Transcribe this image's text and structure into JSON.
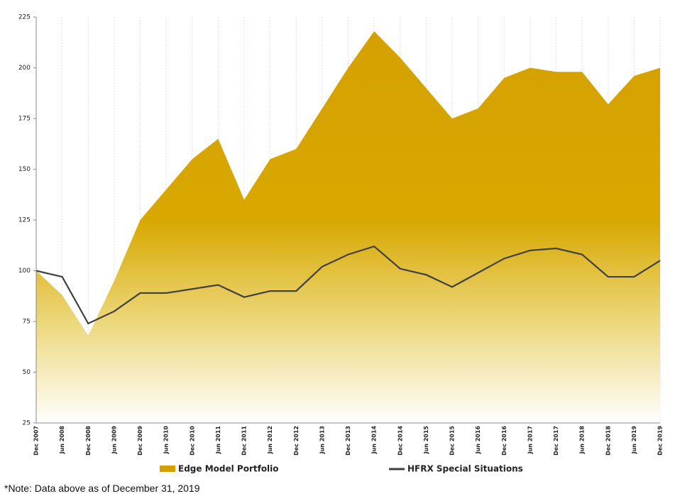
{
  "chart_data": {
    "type": "area-line",
    "categories": [
      "Dec 2007",
      "Jun 2008",
      "Dec 2008",
      "Jun 2009",
      "Dec 2009",
      "Jun 2010",
      "Dec 2010",
      "Jun 2011",
      "Dec 2011",
      "Jun 2012",
      "Dec 2012",
      "Jun 2013",
      "Dec 2013",
      "Jun 2014",
      "Dec 2014",
      "Jun 2015",
      "Dec 2015",
      "Jun 2016",
      "Dec 2016",
      "Jun 2017",
      "Dec 2017",
      "Jun 2018",
      "Dec 2018",
      "Jun 2019",
      "Dec 2019"
    ],
    "series": [
      {
        "name": "Edge Model Portfolio",
        "color": "#d4a000",
        "style": "area",
        "values": [
          100,
          88,
          68,
          95,
          125,
          140,
          155,
          165,
          135,
          155,
          160,
          180,
          200,
          218,
          205,
          190,
          175,
          180,
          195,
          200,
          198,
          198,
          182,
          196,
          200
        ]
      },
      {
        "name": "HFRX Special Situations",
        "color": "#404040",
        "style": "line",
        "values": [
          100,
          97,
          74,
          80,
          89,
          89,
          91,
          93,
          87,
          90,
          90,
          102,
          108,
          112,
          101,
          98,
          92,
          99,
          106,
          110,
          111,
          108,
          97,
          97,
          105
        ]
      }
    ],
    "ylim": [
      25,
      225
    ],
    "yticks": [
      25,
      50,
      75,
      100,
      125,
      150,
      175,
      200,
      225
    ],
    "grid": true,
    "note": "*Note: Data above as of December 31, 2019"
  }
}
